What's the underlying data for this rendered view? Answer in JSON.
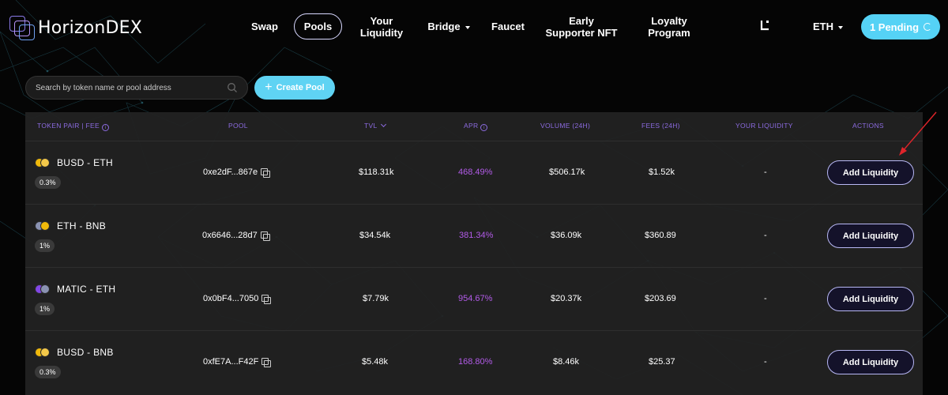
{
  "brand": {
    "name": "HorizonDEX",
    "accent": "#8c6be0",
    "cta_color": "#5fd3f3"
  },
  "nav": {
    "items": [
      {
        "label": "Swap",
        "active": false
      },
      {
        "label": "Pools",
        "active": true
      },
      {
        "label_line1": "Your",
        "label_line2": "Liquidity"
      },
      {
        "label": "Bridge",
        "has_dropdown": true
      },
      {
        "label": "Faucet"
      },
      {
        "label_line1": "Early",
        "label_line2": "Supporter NFT"
      },
      {
        "label_line1": "Loyalty",
        "label_line2": "Program"
      }
    ],
    "wallet_icon": "L-logo-icon",
    "network": "ETH",
    "pending": "1 Pending"
  },
  "toolbar": {
    "search_placeholder": "Search by token name or pool address",
    "create_pool": "Create Pool"
  },
  "table": {
    "headers": {
      "token_pair": "TOKEN PAIR | FEE",
      "pool": "POOL",
      "tvl": "TVL",
      "apr": "APR",
      "volume": "VOLUME (24H)",
      "fees": "FEES (24H)",
      "your_liquidity": "YOUR LIQUIDITY",
      "actions": "ACTIONS"
    },
    "rows": [
      {
        "pair": "BUSD - ETH",
        "fee": "0.3%",
        "pool": "0xe2dF...867e",
        "tvl": "$118.31k",
        "apr": "468.49%",
        "volume": "$506.17k",
        "fees": "$1.52k",
        "your_liquidity": "-",
        "action": "Add Liquidity",
        "coins": [
          "#f0b90b",
          "#f0b90b"
        ]
      },
      {
        "pair": "ETH - BNB",
        "fee": "1%",
        "pool": "0x6646...28d7",
        "tvl": "$34.54k",
        "apr": "381.34%",
        "volume": "$36.09k",
        "fees": "$360.89",
        "your_liquidity": "-",
        "action": "Add Liquidity",
        "coins": [
          "#8a92b2",
          "#f0b90b"
        ]
      },
      {
        "pair": "MATIC - ETH",
        "fee": "1%",
        "pool": "0x0bF4...7050",
        "tvl": "$7.79k",
        "apr": "954.67%",
        "volume": "$20.37k",
        "fees": "$203.69",
        "your_liquidity": "-",
        "action": "Add Liquidity",
        "coins": [
          "#8247e5",
          "#8a92b2"
        ]
      },
      {
        "pair": "BUSD - BNB",
        "fee": "0.3%",
        "pool": "0xfE7A...F42F",
        "tvl": "$5.48k",
        "apr": "168.80%",
        "volume": "$8.46k",
        "fees": "$25.37",
        "your_liquidity": "-",
        "action": "Add Liquidity",
        "coins": [
          "#f0b90b",
          "#f0b90b"
        ]
      }
    ]
  }
}
